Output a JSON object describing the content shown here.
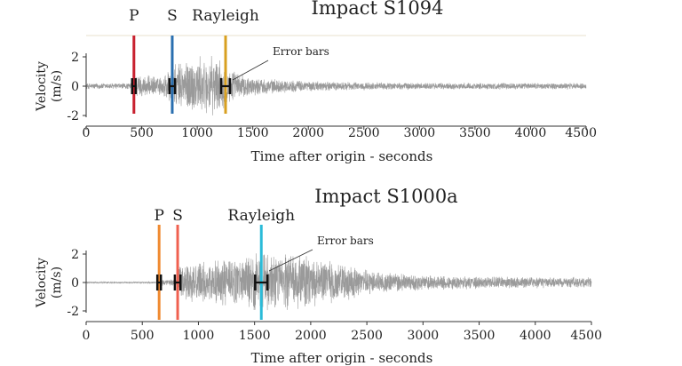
{
  "chart_data": [
    {
      "type": "line",
      "title": "Impact S1094",
      "xlabel": "Time after origin - seconds",
      "ylabel": "Velocity\n(m/s)",
      "xlim": [
        0,
        4500
      ],
      "ylim": [
        -2,
        2
      ],
      "xticks": [
        "0",
        "500",
        "1000",
        "1500",
        "2000",
        "2500",
        "3000",
        "3500",
        "4000",
        "4500"
      ],
      "yticks": [
        "2",
        "0",
        "-2"
      ],
      "series": [
        {
          "values_description": "seismic velocity trace (noise-like)",
          "start": 0,
          "end": 4500
        }
      ],
      "arrivals": [
        {
          "label": "P",
          "time": 430,
          "color": "#c8202f",
          "error": 15
        },
        {
          "label": "S",
          "time": 775,
          "color": "#2a6fb0",
          "error": 25
        },
        {
          "label": "Rayleigh",
          "time": 1255,
          "color": "#d8a020",
          "error": 40
        }
      ],
      "annotation": "Error bars"
    },
    {
      "type": "line",
      "title": "Impact S1000a",
      "xlabel": "Time after origin - seconds",
      "ylabel": "Velocity\n(m/s)",
      "xlim": [
        0,
        4500
      ],
      "ylim": [
        -2,
        2
      ],
      "xticks": [
        "0",
        "500",
        "1000",
        "1500",
        "2000",
        "2500",
        "3000",
        "3500",
        "4000",
        "4500"
      ],
      "yticks": [
        "2",
        "0",
        "-2"
      ],
      "series": [
        {
          "values_description": "seismic velocity trace (noise-like)",
          "start": 0,
          "end": 4500
        }
      ],
      "arrivals": [
        {
          "label": "P",
          "time": 650,
          "color": "#f08a30",
          "error": 15
        },
        {
          "label": "S",
          "time": 815,
          "color": "#f06050",
          "error": 25
        },
        {
          "label": "Rayleigh",
          "time": 1560,
          "color": "#2bbbd8",
          "error": 55
        }
      ],
      "annotation": "Error bars"
    }
  ]
}
